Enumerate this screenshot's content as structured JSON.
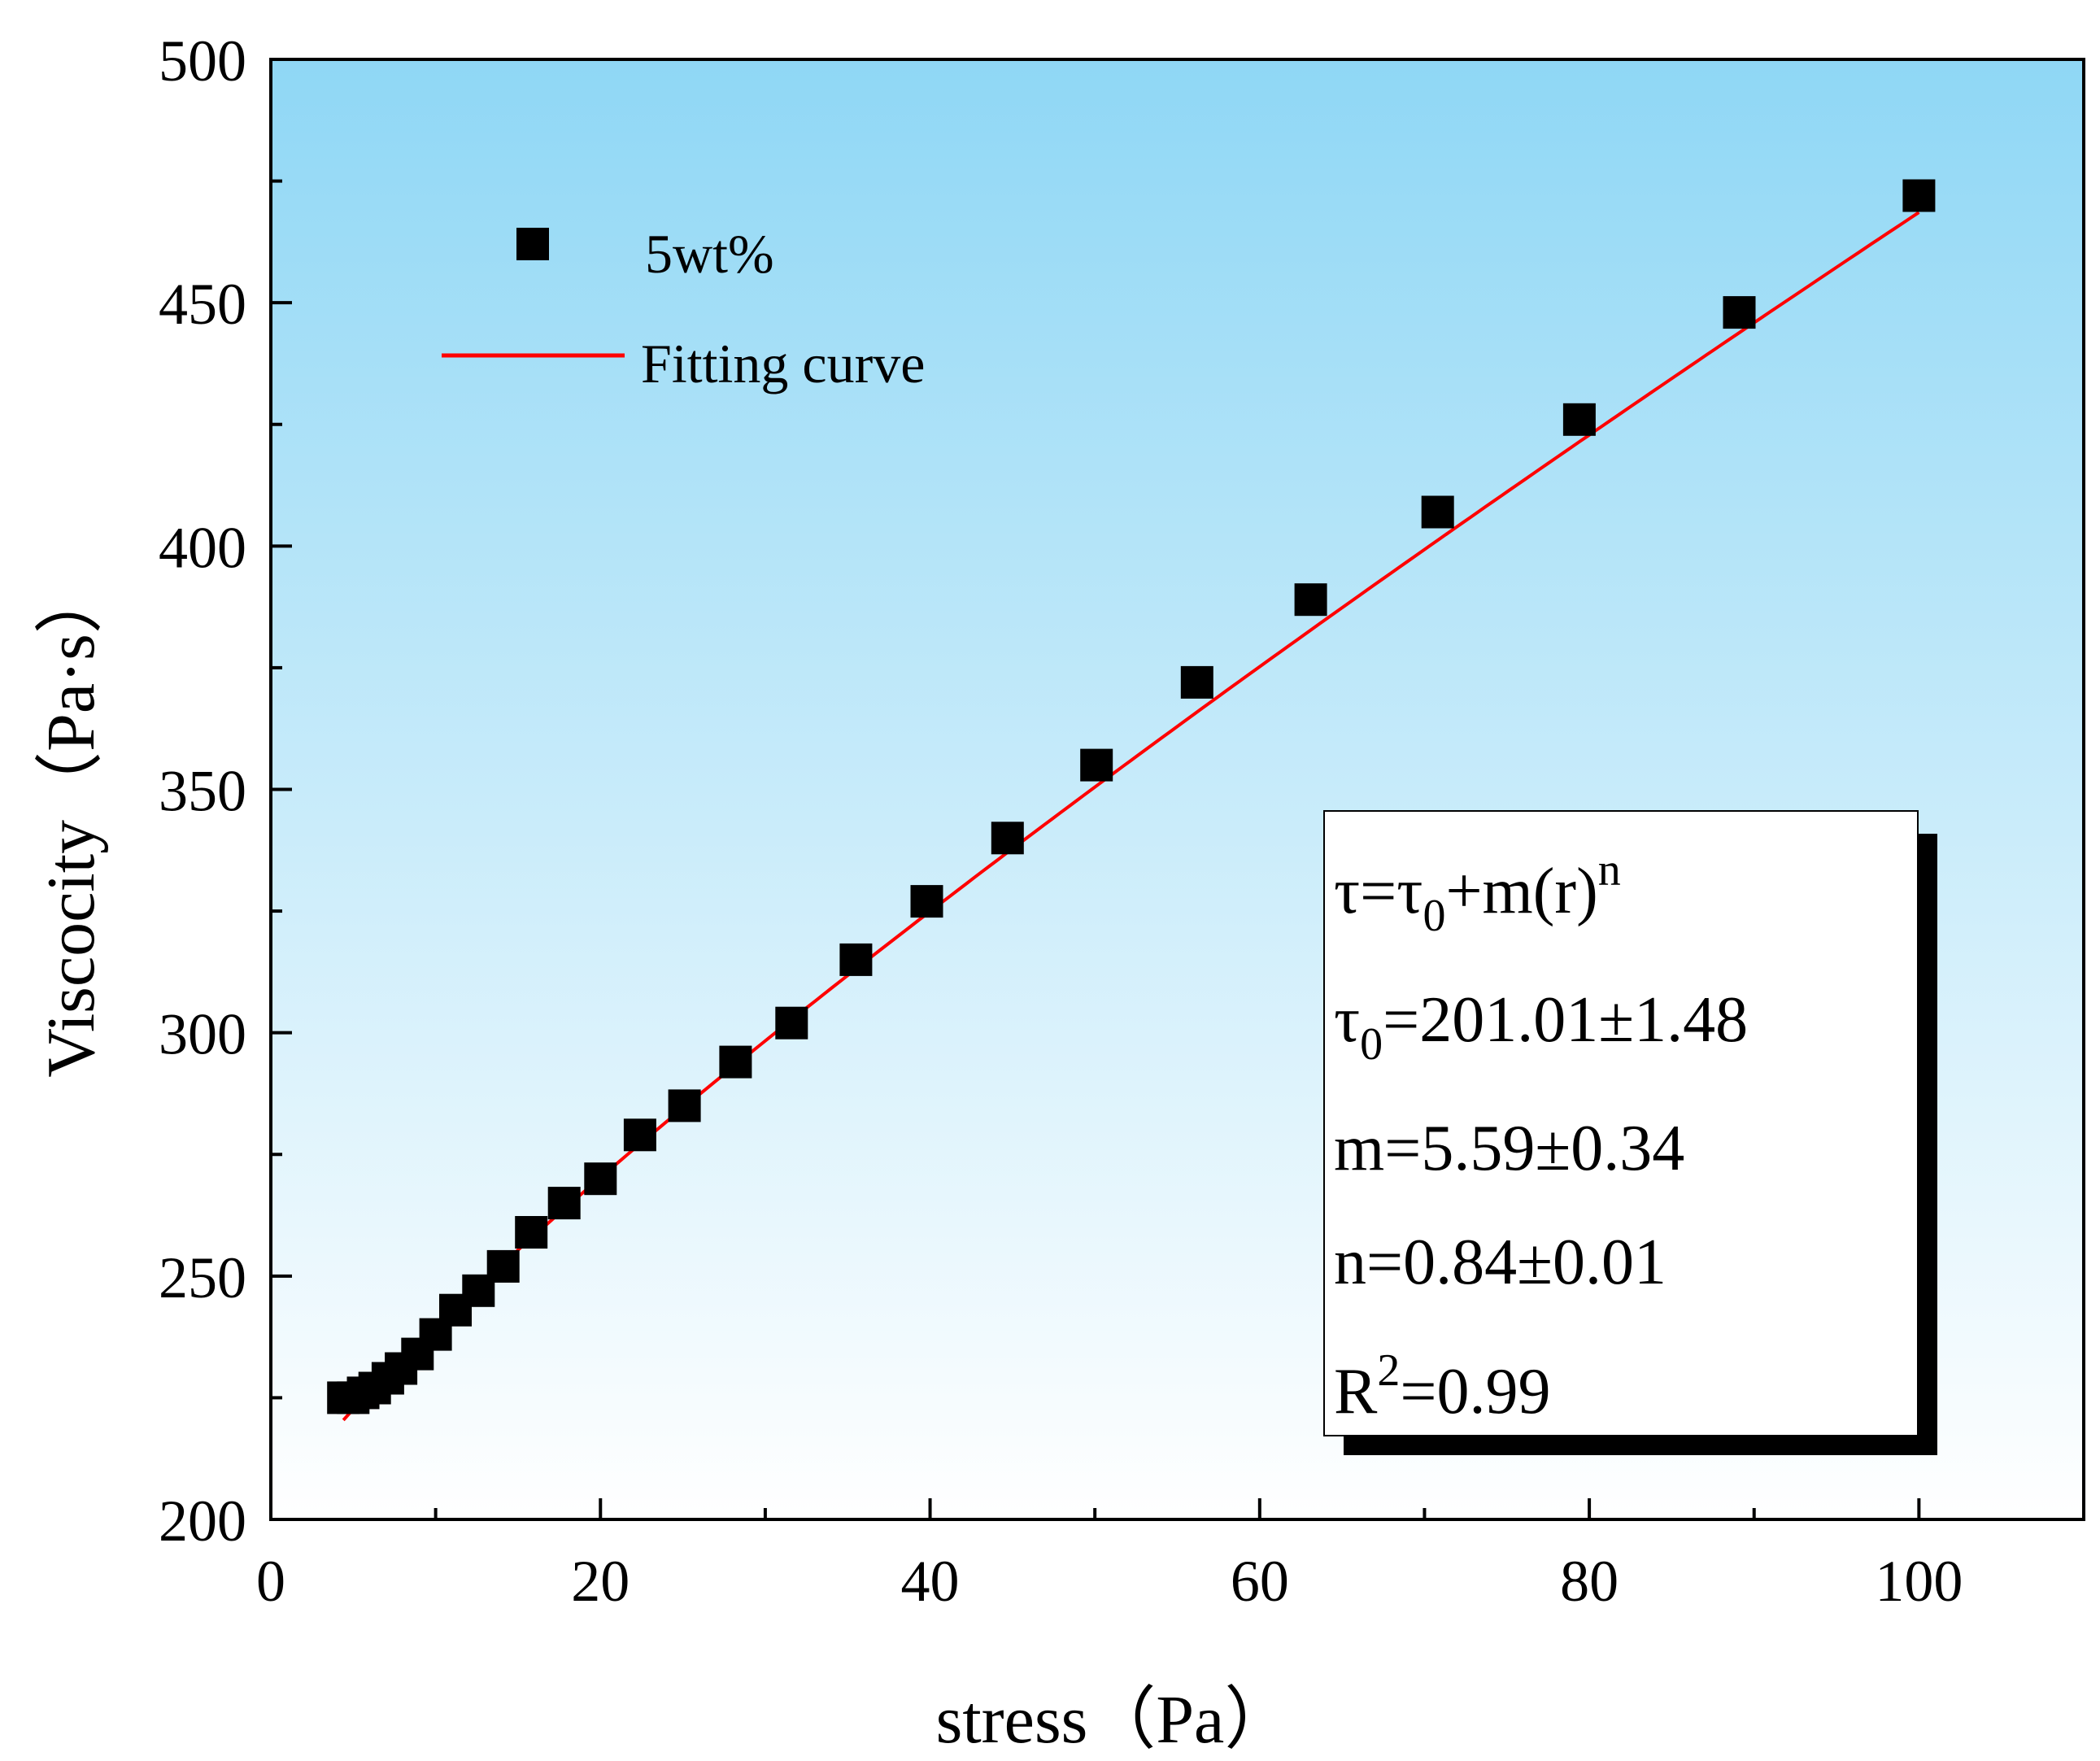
{
  "chart_data": {
    "type": "scatter",
    "xlabel": "stress（Pa）",
    "ylabel": "Viscocity（Pa·s）",
    "xlim": [
      0,
      110
    ],
    "ylim": [
      200,
      500
    ],
    "x_ticks": [
      0,
      20,
      40,
      60,
      80,
      100
    ],
    "x_minor_ticks": [
      10,
      30,
      50,
      70,
      90
    ],
    "y_ticks": [
      200,
      250,
      300,
      350,
      400,
      450,
      500
    ],
    "y_minor_ticks": [
      225,
      275,
      325,
      375,
      425,
      475
    ],
    "x_tick_labels": [
      "0",
      "20",
      "40",
      "60",
      "80",
      "100"
    ],
    "y_tick_labels": [
      "200",
      "250",
      "300",
      "350",
      "400",
      "450",
      "500"
    ],
    "grid": false,
    "legend_position": "top-left",
    "series": [
      {
        "name": "5wt%",
        "kind": "scatter",
        "marker": "square",
        "color": "#000000",
        "x": [
          4.4,
          5.0,
          5.6,
          6.3,
          7.1,
          7.9,
          8.9,
          10.0,
          11.2,
          12.6,
          14.1,
          15.8,
          17.8,
          20.0,
          22.4,
          25.1,
          28.2,
          31.6,
          35.5,
          39.8,
          44.7,
          50.1,
          56.2,
          63.1,
          70.8,
          79.4,
          89.1,
          100.0
        ],
        "y": [
          225,
          225,
          226,
          227,
          229,
          231,
          234,
          238,
          243,
          247,
          252,
          259,
          265,
          270,
          279,
          285,
          294,
          302,
          315,
          327,
          340,
          355,
          372,
          389,
          407,
          426,
          448,
          472
        ]
      },
      {
        "name": "Fitting curve",
        "kind": "line",
        "color": "#ff0000",
        "x_start": 4.4,
        "x_end": 100.0,
        "tau0": 201.01,
        "m": 5.59,
        "n": 0.84
      }
    ],
    "annotation": {
      "equation": {
        "tau": "τ",
        "eq": "=",
        "tau_sub": "τ",
        "sub0": "0",
        "rest": "+m(r)",
        "sup_n": "n"
      },
      "tau0_line": {
        "tau": "τ",
        "sub0": "0",
        "value": "=201.01±1.48"
      },
      "m_line": "m=5.59±0.34",
      "n_line": "n=0.84±0.01",
      "r2_line": {
        "r": "R",
        "sup2": "2",
        "value": "=0.99"
      }
    },
    "colors": {
      "background_top": "#8fd7f5",
      "background_bottom": "#ffffff",
      "fit_line": "#ff0000",
      "marker": "#000000"
    }
  }
}
